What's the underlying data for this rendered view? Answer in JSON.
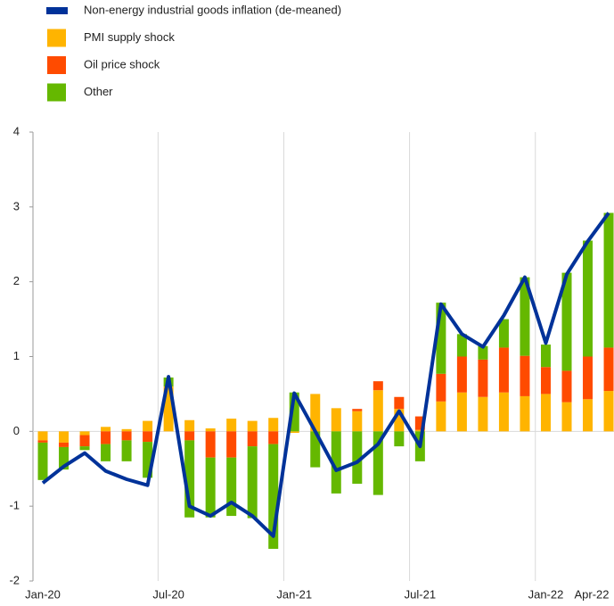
{
  "chart_data": {
    "type": "combo",
    "categories": [
      "Jan-20",
      null,
      null,
      null,
      null,
      null,
      "Jul-20",
      null,
      null,
      null,
      null,
      null,
      "Jan-21",
      null,
      null,
      null,
      null,
      null,
      "Jul-21",
      null,
      null,
      null,
      null,
      null,
      "Jan-22",
      null,
      null,
      "Apr-22"
    ],
    "series": [
      {
        "name": "Non-energy industrial goods inflation (de-meaned)",
        "type": "line",
        "color": "#003299",
        "values": [
          -0.69,
          -0.47,
          -0.29,
          -0.53,
          -0.64,
          -0.72,
          0.73,
          -1.0,
          -1.13,
          -0.95,
          -1.13,
          -1.4,
          0.51,
          0.0,
          -0.52,
          -0.41,
          -0.17,
          0.27,
          -0.2,
          1.7,
          1.3,
          1.13,
          1.55,
          2.06,
          1.18,
          2.1,
          2.54,
          2.92
        ]
      },
      {
        "name": "PMI supply shock",
        "type": "bar",
        "color": "#ffb400",
        "values": [
          -0.12,
          -0.15,
          -0.05,
          0.06,
          0.03,
          0.14,
          0.6,
          0.15,
          0.04,
          0.17,
          0.14,
          0.18,
          -0.02,
          0.5,
          0.31,
          0.27,
          0.55,
          0.3,
          0.02,
          0.4,
          0.52,
          0.46,
          0.52,
          0.47,
          0.5,
          0.39,
          0.43,
          0.54
        ]
      },
      {
        "name": "Oil price shock",
        "type": "bar",
        "color": "#ff4b00",
        "values": [
          -0.03,
          -0.06,
          -0.15,
          -0.17,
          -0.12,
          -0.14,
          0.0,
          -0.12,
          -0.35,
          -0.35,
          -0.2,
          -0.17,
          0.0,
          0.0,
          0.0,
          0.03,
          0.12,
          0.16,
          0.18,
          0.37,
          0.48,
          0.5,
          0.6,
          0.54,
          0.36,
          0.42,
          0.57,
          0.58
        ]
      },
      {
        "name": "Other",
        "type": "bar",
        "color": "#65b800",
        "values": [
          -0.5,
          -0.3,
          -0.05,
          -0.23,
          -0.28,
          -0.48,
          0.12,
          -1.03,
          -0.8,
          -0.78,
          -0.96,
          -1.4,
          0.52,
          -0.48,
          -0.83,
          -0.7,
          -0.85,
          -0.2,
          -0.4,
          0.95,
          0.3,
          0.18,
          0.38,
          1.05,
          0.3,
          1.31,
          1.55,
          1.8
        ]
      }
    ],
    "ylim": [
      -2,
      4
    ],
    "yticks": [
      -2,
      -1,
      0,
      1,
      2,
      3,
      4
    ],
    "xgrid": true
  }
}
